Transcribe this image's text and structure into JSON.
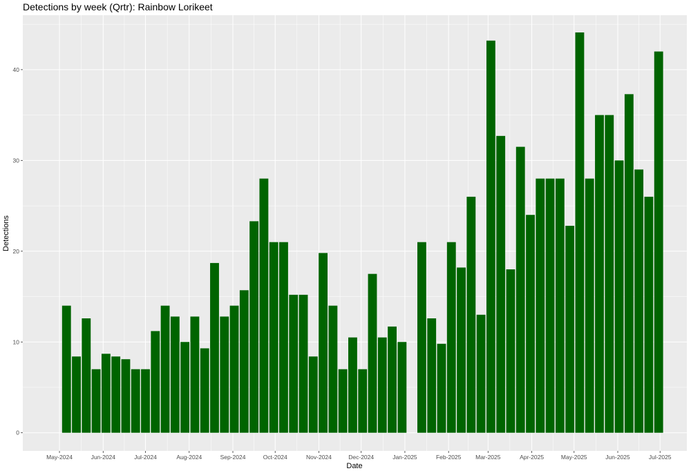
{
  "chart_data": {
    "type": "bar",
    "title": "Detections by week (Qrtr): Rainbow Lorikeet",
    "xlabel": "Date",
    "ylabel": "Detections",
    "ylim": [
      -2,
      46
    ],
    "y_ticks": [
      0,
      10,
      20,
      30,
      40
    ],
    "x_ticks": [
      {
        "label": "May-2024",
        "date": "2024-05-01"
      },
      {
        "label": "Jun-2024",
        "date": "2024-06-01"
      },
      {
        "label": "Jul-2024",
        "date": "2024-07-01"
      },
      {
        "label": "Aug-2024",
        "date": "2024-08-01"
      },
      {
        "label": "Sep-2024",
        "date": "2024-09-01"
      },
      {
        "label": "Oct-2024",
        "date": "2024-10-01"
      },
      {
        "label": "Nov-2024",
        "date": "2024-11-01"
      },
      {
        "label": "Dec-2024",
        "date": "2024-12-01"
      },
      {
        "label": "Jan-2025",
        "date": "2025-01-01"
      },
      {
        "label": "Feb-2025",
        "date": "2025-02-01"
      },
      {
        "label": "Mar-2025",
        "date": "2025-03-01"
      },
      {
        "label": "Apr-2025",
        "date": "2025-04-01"
      },
      {
        "label": "May-2025",
        "date": "2025-05-01"
      },
      {
        "label": "Jun-2025",
        "date": "2025-06-01"
      },
      {
        "label": "Jul-2025",
        "date": "2025-07-01"
      }
    ],
    "bar_color": "#006400",
    "panel_color": "#EBEBEB",
    "grid": true,
    "x": [
      "2024-05-06",
      "2024-05-13",
      "2024-05-20",
      "2024-05-27",
      "2024-06-03",
      "2024-06-10",
      "2024-06-17",
      "2024-06-24",
      "2024-07-01",
      "2024-07-08",
      "2024-07-15",
      "2024-07-22",
      "2024-07-29",
      "2024-08-05",
      "2024-08-12",
      "2024-08-19",
      "2024-08-26",
      "2024-09-02",
      "2024-09-09",
      "2024-09-16",
      "2024-09-23",
      "2024-09-30",
      "2024-10-07",
      "2024-10-14",
      "2024-10-21",
      "2024-10-28",
      "2024-11-04",
      "2024-11-11",
      "2024-11-18",
      "2024-11-25",
      "2024-12-02",
      "2024-12-09",
      "2024-12-16",
      "2024-12-23",
      "2024-12-30",
      "2025-01-13",
      "2025-01-20",
      "2025-01-27",
      "2025-02-03",
      "2025-02-10",
      "2025-02-17",
      "2025-02-24",
      "2025-03-03",
      "2025-03-10",
      "2025-03-17",
      "2025-03-24",
      "2025-03-31",
      "2025-04-07",
      "2025-04-14",
      "2025-04-21",
      "2025-04-28",
      "2025-05-05",
      "2025-05-12",
      "2025-05-19",
      "2025-05-26",
      "2025-06-02",
      "2025-06-09",
      "2025-06-16",
      "2025-06-23",
      "2025-06-30"
    ],
    "values": [
      14,
      8.4,
      12.6,
      7,
      8.7,
      8.4,
      8.1,
      7,
      7,
      11.2,
      14,
      12.8,
      10,
      12.8,
      9.3,
      18.7,
      12.8,
      14,
      15.7,
      23.3,
      28,
      21,
      21,
      15.2,
      15.2,
      8.4,
      19.8,
      14,
      7,
      10.5,
      7,
      17.5,
      10.5,
      11.7,
      10,
      21,
      12.6,
      9.8,
      21,
      18.2,
      26,
      13,
      43.2,
      32.7,
      18,
      31.5,
      24,
      28,
      28,
      28,
      22.8,
      44.1,
      28,
      35,
      35,
      30,
      37.3,
      29,
      26,
      42
    ]
  }
}
